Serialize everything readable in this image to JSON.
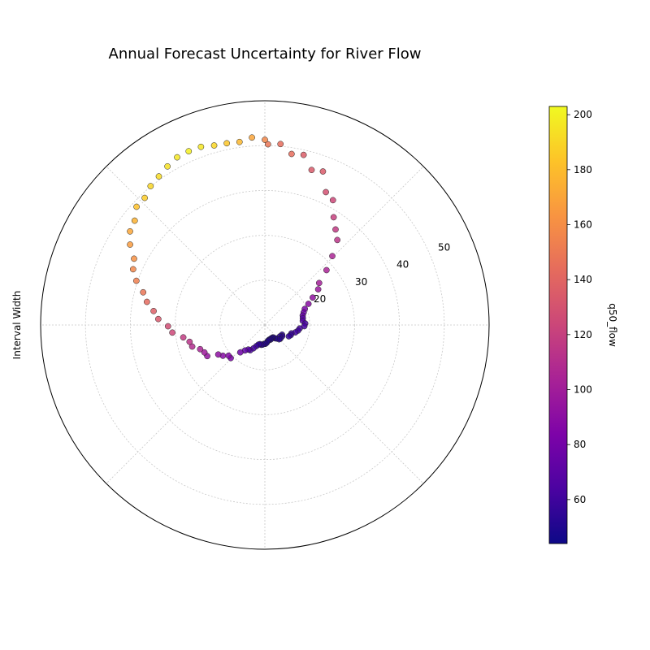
{
  "chart_data": {
    "type": "scatter",
    "subtype": "polar",
    "title": "Annual Forecast Uncertainty for River Flow",
    "ylabel": "Interval Width",
    "colorbar_label": "q50_flow",
    "r_ticks": [
      "20",
      "30",
      "40",
      "50"
    ],
    "r_range": [
      10,
      60
    ],
    "theta_direction": "clockwise from top",
    "grid": true,
    "colormap": "plasma",
    "colorbar_range": [
      44,
      203
    ],
    "colorbar_ticks": [
      "60",
      "80",
      "100",
      "120",
      "140",
      "160",
      "180",
      "200"
    ],
    "series": [
      {
        "x": [
          1,
          5,
          9,
          13,
          17,
          21,
          25,
          29,
          33,
          37,
          41,
          45,
          49,
          53,
          57,
          61,
          65,
          69,
          73,
          77,
          81,
          85,
          89,
          93,
          97,
          101,
          105,
          109,
          113,
          117,
          121,
          125,
          129,
          133,
          137,
          141,
          145,
          149,
          153,
          157,
          161,
          165,
          169,
          173,
          177,
          181,
          185,
          189,
          193,
          197,
          201,
          205,
          209,
          213,
          217,
          221,
          225,
          229,
          233,
          237,
          241,
          245,
          249,
          253,
          257,
          261,
          265,
          269,
          273,
          277,
          281,
          285,
          289,
          293,
          297,
          301,
          305,
          309,
          313,
          317,
          321,
          325,
          329,
          333,
          337,
          341,
          345,
          349,
          353,
          357,
          361,
          365
        ],
        "y": [
          50.3,
          50.5,
          48.6,
          48.9,
          46.1,
          46.6,
          42.6,
          41.7,
          38.5,
          36.5,
          34.9,
          31.5,
          28.4,
          25.3,
          24.3,
          22.3,
          20.8,
          19.6,
          19.1,
          18.7,
          18.6,
          18.5,
          19.0,
          18.8,
          17.8,
          17.5,
          17.0,
          16.2,
          16.2,
          15.9,
          14.4,
          14.6,
          14.2,
          14.6,
          14.5,
          14.0,
          13.7,
          13.3,
          13.3,
          13.3,
          13.5,
          13.4,
          13.5,
          13.7,
          14.0,
          14.2,
          14.2,
          14.4,
          14.5,
          14.4,
          14.6,
          15.1,
          15.8,
          16.5,
          16.6,
          17.2,
          18.2,
          20.6,
          20.6,
          21.6,
          22.3,
          24.6,
          24.8,
          25.4,
          26.9,
          27.2,
          28.4,
          30.7,
          31.6,
          33.8,
          35.0,
          36.8,
          38.1,
          40.3,
          41.9,
          42.7,
          45.0,
          46.6,
          47.2,
          48.9,
          49.0,
          50.1,
          50.7,
          51.5,
          52.2,
          52.3,
          52.2,
          51.6,
          51.4,
          51.2,
          51.9,
          51.3
        ],
        "c": [
          148,
          144,
          144,
          136,
          134,
          134,
          129,
          124,
          120,
          117,
          114,
          105,
          104,
          101,
          97,
          92,
          89,
          82,
          76,
          74,
          69,
          67,
          63,
          62,
          61,
          60,
          60,
          58,
          57,
          56,
          54,
          55,
          53,
          54,
          53,
          52,
          52,
          52,
          51,
          50,
          50,
          51,
          51,
          51,
          51,
          52,
          52,
          53,
          53,
          54,
          56,
          58,
          62,
          64,
          68,
          72,
          78,
          83,
          86,
          88,
          91,
          94,
          99,
          104,
          109,
          113,
          118,
          124,
          127,
          133,
          137,
          143,
          148,
          153,
          157,
          162,
          166,
          171,
          176,
          182,
          186,
          190,
          192,
          194,
          196,
          199,
          196,
          190,
          184,
          178,
          170,
          157
        ]
      }
    ]
  }
}
